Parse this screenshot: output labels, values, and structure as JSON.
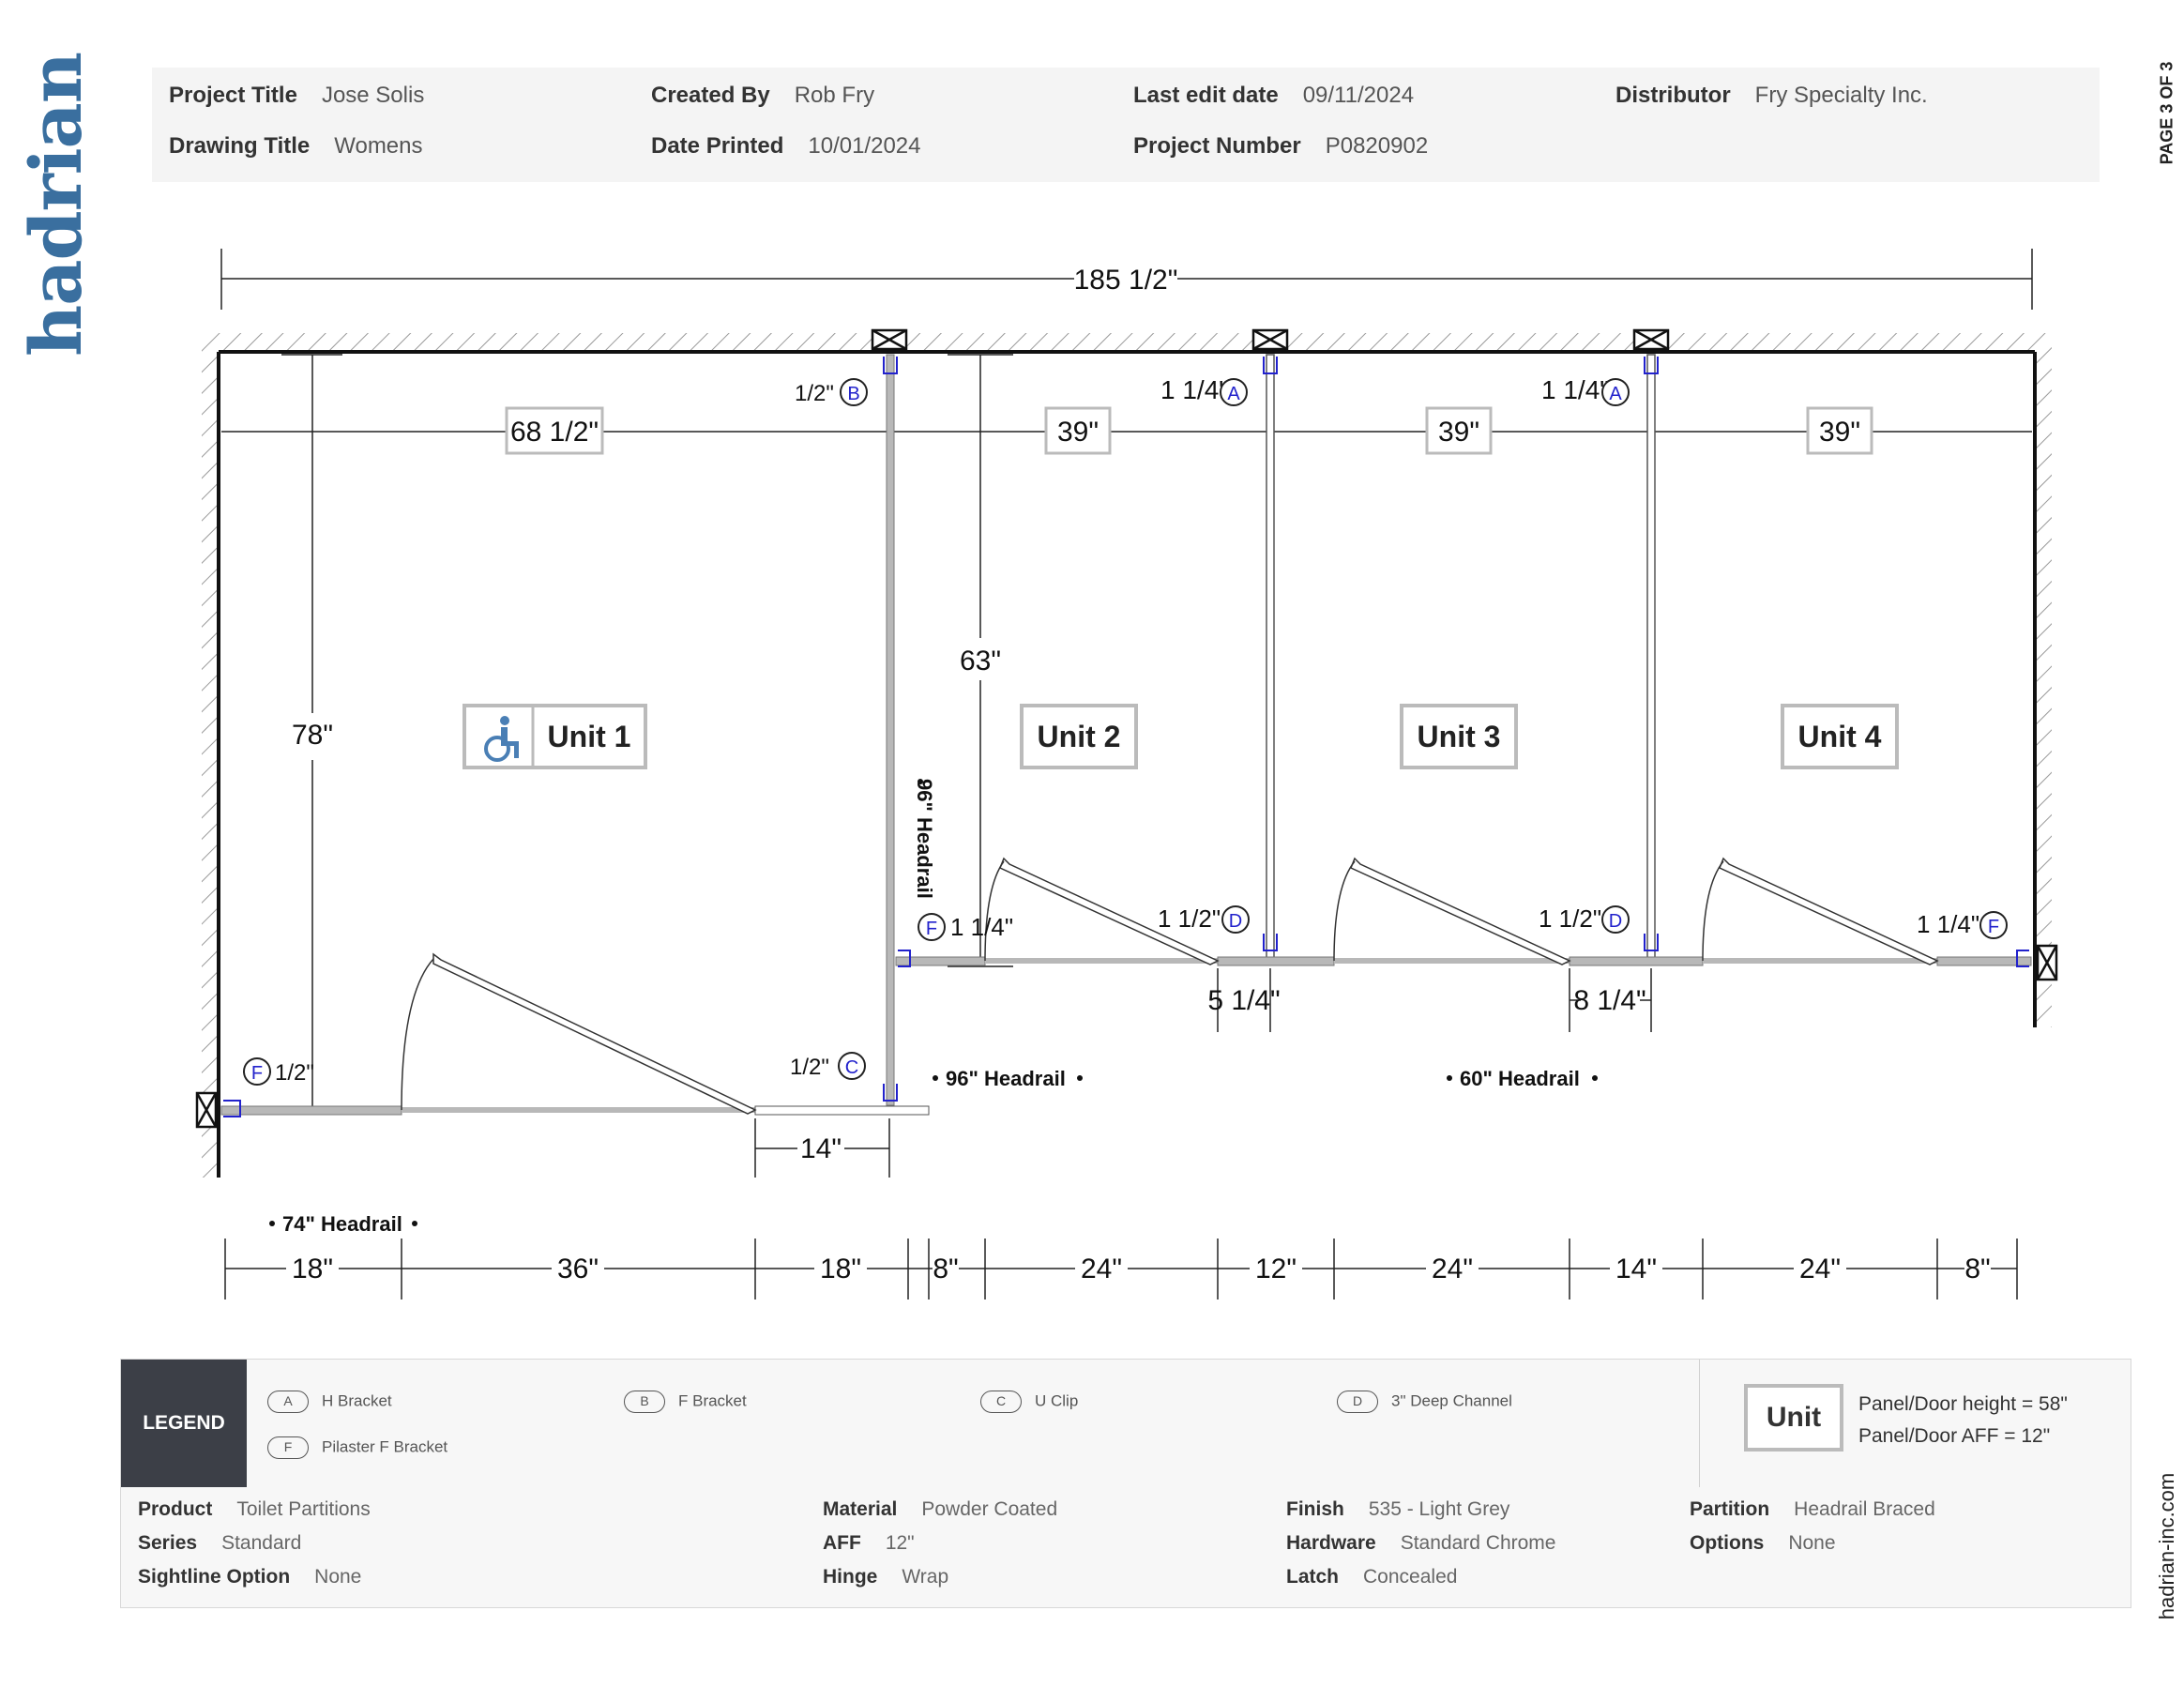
{
  "brand": {
    "logo_text": "hadrian",
    "page_label": "PAGE 3 OF 3",
    "website": "hadrian-inc.com"
  },
  "header": {
    "project_title": {
      "label": "Project Title",
      "value": "Jose Solis"
    },
    "drawing_title": {
      "label": "Drawing Title",
      "value": "Womens"
    },
    "created_by": {
      "label": "Created By",
      "value": "Rob Fry"
    },
    "date_printed": {
      "label": "Date Printed",
      "value": "10/01/2024"
    },
    "last_edit_date": {
      "label": "Last edit date",
      "value": "09/11/2024"
    },
    "project_number": {
      "label": "Project Number",
      "value": "P0820902"
    },
    "distributor": {
      "label": "Distributor",
      "value": "Fry Specialty Inc."
    }
  },
  "drawing": {
    "overall_width": "185 1/2\"",
    "units": [
      {
        "label": "Unit 1",
        "width": "68 1/2\"",
        "accessible": true
      },
      {
        "label": "Unit 2",
        "width": "39\"",
        "accessible": false
      },
      {
        "label": "Unit 3",
        "width": "39\"",
        "accessible": false
      },
      {
        "label": "Unit 4",
        "width": "39\"",
        "accessible": false
      }
    ],
    "depth_unit1": "78\"",
    "depth_units": "63\"",
    "headrails": [
      "96\" Headrail",
      "96\" Headrail",
      "60\" Headrail",
      "74\" Headrail"
    ],
    "bottom_dims": [
      "18\"",
      "36\"",
      "18\"",
      "8\"",
      "24\"",
      "12\"",
      "24\"",
      "14\"",
      "24\"",
      "8\""
    ],
    "pilaster_dims": [
      "14\"",
      "5 1/4\"",
      "8 1/4\""
    ],
    "callouts": [
      {
        "tag": "B",
        "offset": "1/2\""
      },
      {
        "tag": "A",
        "offset": "1 1/4\""
      },
      {
        "tag": "A",
        "offset": "1 1/4\""
      },
      {
        "tag": "F",
        "offset": "1 1/4\""
      },
      {
        "tag": "D",
        "offset": "1 1/2\""
      },
      {
        "tag": "D",
        "offset": "1 1/2\""
      },
      {
        "tag": "F",
        "offset": "1 1/4\""
      },
      {
        "tag": "F",
        "offset": "1/2\""
      },
      {
        "tag": "C",
        "offset": "1/2\""
      }
    ]
  },
  "legend": {
    "title": "LEGEND",
    "items": [
      {
        "tag": "A",
        "label": "H Bracket"
      },
      {
        "tag": "B",
        "label": "F Bracket"
      },
      {
        "tag": "C",
        "label": "U Clip"
      },
      {
        "tag": "D",
        "label": "3\" Deep Channel"
      },
      {
        "tag": "F",
        "label": "Pilaster F Bracket"
      }
    ],
    "unit_box": "Unit",
    "panel_height": "Panel/Door height = 58\"",
    "panel_aff": "Panel/Door AFF = 12\""
  },
  "specs": {
    "product": {
      "label": "Product",
      "value": "Toilet Partitions"
    },
    "series": {
      "label": "Series",
      "value": "Standard"
    },
    "sightline": {
      "label": "Sightline Option",
      "value": "None"
    },
    "material": {
      "label": "Material",
      "value": "Powder Coated"
    },
    "aff": {
      "label": "AFF",
      "value": "12\""
    },
    "hinge": {
      "label": "Hinge",
      "value": "Wrap"
    },
    "finish": {
      "label": "Finish",
      "value": "535 - Light Grey"
    },
    "hardware": {
      "label": "Hardware",
      "value": "Standard Chrome"
    },
    "latch": {
      "label": "Latch",
      "value": "Concealed"
    },
    "partition": {
      "label": "Partition",
      "value": "Headrail Braced"
    },
    "options": {
      "label": "Options",
      "value": "None"
    }
  },
  "colors": {
    "accent": "#3a6f9f",
    "callout": "#2222cc",
    "panel": "#b8b8b8",
    "legend_dark": "#3c3f47"
  }
}
